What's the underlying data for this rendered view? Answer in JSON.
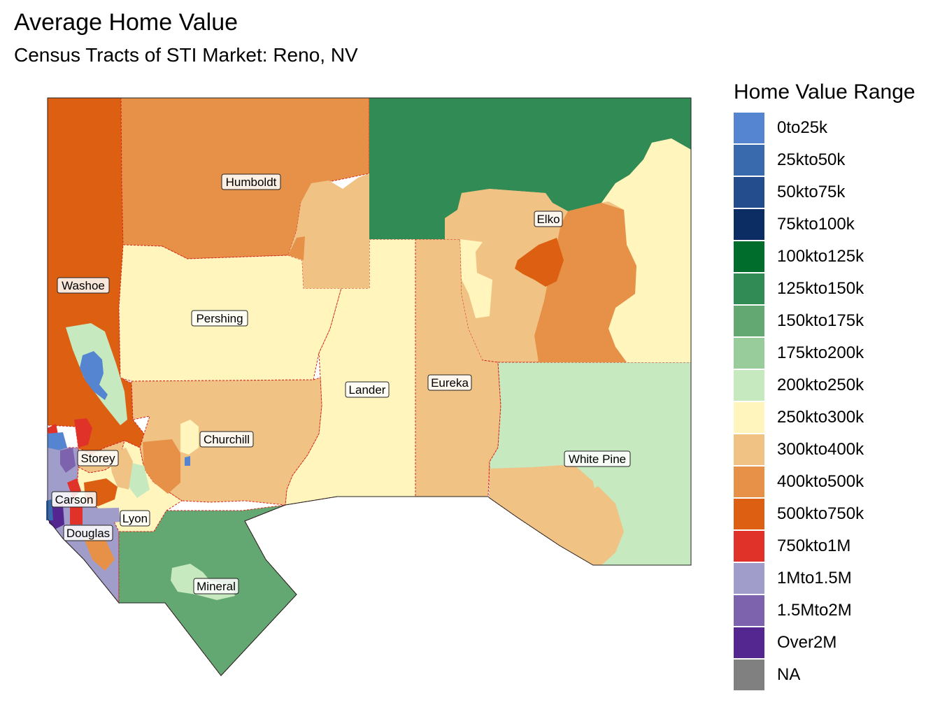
{
  "title": "Average Home Value",
  "subtitle": "Census Tracts of STI Market: Reno, NV",
  "legend": {
    "title": "Home Value Range",
    "items": [
      {
        "label": "0to25k",
        "color": "#5585d0"
      },
      {
        "label": "25kto50k",
        "color": "#3a6aae"
      },
      {
        "label": "50kto75k",
        "color": "#234d8d"
      },
      {
        "label": "75kto100k",
        "color": "#0c2d63"
      },
      {
        "label": "100kto125k",
        "color": "#006d2c"
      },
      {
        "label": "125kto150k",
        "color": "#318b55"
      },
      {
        "label": "150kto175k",
        "color": "#63a873"
      },
      {
        "label": "175kto200k",
        "color": "#98cc9a"
      },
      {
        "label": "200kto250k",
        "color": "#c7e9c0"
      },
      {
        "label": "250kto300k",
        "color": "#fff5bd"
      },
      {
        "label": "300kto400k",
        "color": "#f0c284"
      },
      {
        "label": "400kto500k",
        "color": "#e69147"
      },
      {
        "label": "500kto750k",
        "color": "#dc5f12"
      },
      {
        "label": "750kto1M",
        "color": "#e03228"
      },
      {
        "label": "1Mto1.5M",
        "color": "#a19dcb"
      },
      {
        "label": "1.5Mto2M",
        "color": "#7d62ae"
      },
      {
        "label": "Over2M",
        "color": "#542790"
      },
      {
        "label": "NA",
        "color": "#808080"
      }
    ]
  },
  "counties": [
    {
      "name": "Humboldt",
      "range": "400kto500k"
    },
    {
      "name": "Elko",
      "range": "300kto400k"
    },
    {
      "name": "Washoe",
      "range": "500kto750k"
    },
    {
      "name": "Pershing",
      "range": "250kto300k"
    },
    {
      "name": "Lander",
      "range": "250kto300k"
    },
    {
      "name": "Eureka",
      "range": "300kto400k"
    },
    {
      "name": "Churchill",
      "range": "300kto400k"
    },
    {
      "name": "White Pine",
      "range": "200kto250k"
    },
    {
      "name": "Storey",
      "range": "300kto400k"
    },
    {
      "name": "Carson",
      "range": "1Mto1.5M"
    },
    {
      "name": "Lyon",
      "range": "250kto300k"
    },
    {
      "name": "Douglas",
      "range": "1Mto1.5M"
    },
    {
      "name": "Mineral",
      "range": "150kto175k"
    }
  ]
}
